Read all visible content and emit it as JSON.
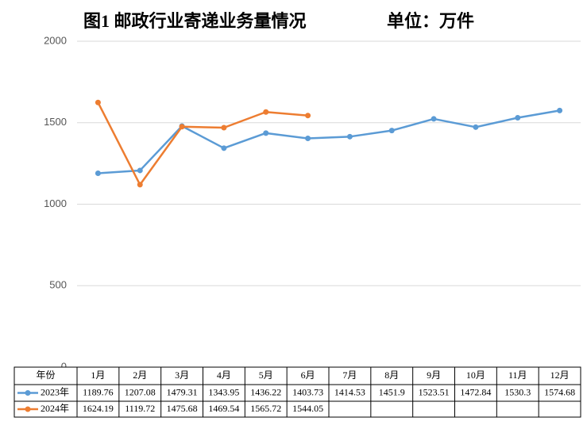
{
  "chart_data": {
    "type": "line",
    "title": "图1 邮政行业寄递业务量情况",
    "unit_label": "单位：万件",
    "table_header": "年份",
    "categories": [
      "1月",
      "2月",
      "3月",
      "4月",
      "5月",
      "6月",
      "7月",
      "8月",
      "9月",
      "10月",
      "11月",
      "12月"
    ],
    "series": [
      {
        "name": "2023年",
        "color": "#5b9bd5",
        "values": [
          1189.76,
          1207.08,
          1479.31,
          1343.95,
          1436.22,
          1403.73,
          1414.53,
          1451.9,
          1523.51,
          1472.84,
          1530.3,
          1574.68
        ]
      },
      {
        "name": "2024年",
        "color": "#ed7d31",
        "values": [
          1624.19,
          1119.72,
          1475.68,
          1469.54,
          1565.72,
          1544.05,
          null,
          null,
          null,
          null,
          null,
          null
        ]
      }
    ],
    "ylim": [
      0,
      2000
    ],
    "yticks": [
      0,
      500,
      1000,
      1500,
      2000
    ],
    "grid": true
  }
}
